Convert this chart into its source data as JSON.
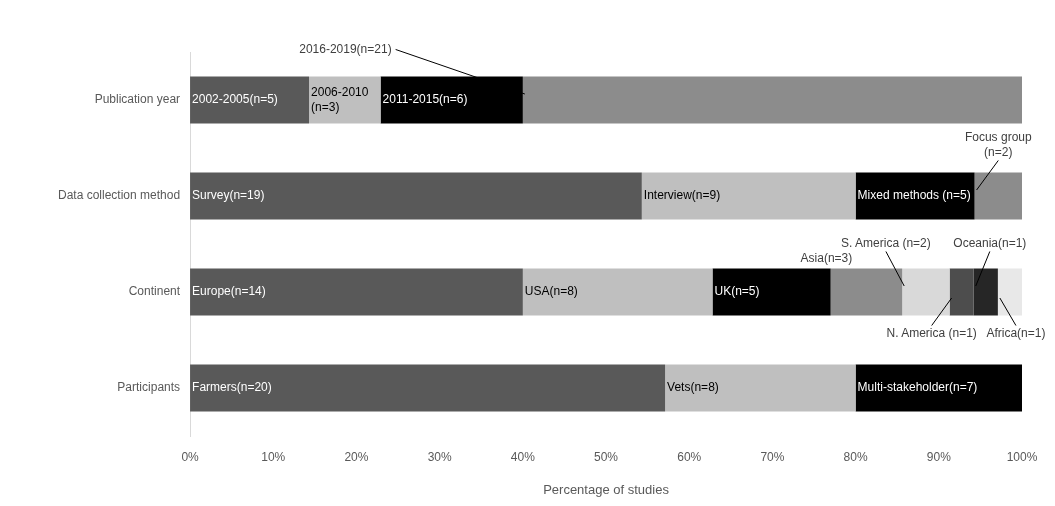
{
  "chart_data": {
    "type": "bar",
    "orientation": "horizontal",
    "stacked": true,
    "grid": false,
    "legend": false,
    "categories": [
      "Publication year",
      "Data collection method",
      "Continent",
      "Participants"
    ],
    "xlabel": "Percentage of studies",
    "xlim": [
      0,
      100
    ],
    "xticks": [
      {
        "value": 0,
        "label": "0%"
      },
      {
        "value": 10,
        "label": "10%"
      },
      {
        "value": 20,
        "label": "20%"
      },
      {
        "value": 30,
        "label": "30%"
      },
      {
        "value": 40,
        "label": "40%"
      },
      {
        "value": 50,
        "label": "50%"
      },
      {
        "value": 60,
        "label": "60%"
      },
      {
        "value": 70,
        "label": "70%"
      },
      {
        "value": 80,
        "label": "80%"
      },
      {
        "value": 90,
        "label": "90%"
      },
      {
        "value": 100,
        "label": "100%"
      }
    ],
    "series": [
      {
        "color": "#595959",
        "values": [
          14.3,
          54.3,
          40,
          57.1
        ]
      },
      {
        "color": "#bfbfbf",
        "values": [
          8.6,
          25.7,
          22.8,
          22.9
        ]
      },
      {
        "color": "#000000",
        "values": [
          17.1,
          14.3,
          14.2,
          20
        ]
      },
      {
        "color": "#8c8c8c",
        "values": [
          60,
          5.7,
          8.6,
          null
        ]
      },
      {
        "color": "#d9d9d9",
        "values": [
          null,
          null,
          5.7,
          null
        ]
      },
      {
        "color": "#4d4d4d",
        "values": [
          null,
          null,
          2.9,
          null
        ]
      },
      {
        "color": "#262626",
        "values": [
          null,
          null,
          2.9,
          null
        ]
      },
      {
        "color": "#e8e8e8",
        "values": [
          null,
          null,
          2.9,
          null
        ]
      }
    ],
    "annotations": [
      {
        "text": "2002-2005(n=5)",
        "x": 0,
        "y": "Publication year"
      },
      {
        "text": "2006-2010 (n=3)",
        "x": 14.3,
        "y": "Publication year"
      },
      {
        "text": "2011-2015(n=6)",
        "x": 22.9,
        "y": "Publication year"
      },
      {
        "text": "2016-2019(n=21)",
        "x": 40,
        "y": "Publication year"
      },
      {
        "text": "Survey(n=19)",
        "x": 0,
        "y": "Data collection method"
      },
      {
        "text": "Interview(n=9)",
        "x": 54.3,
        "y": "Data collection method"
      },
      {
        "text": "Mixed methods (n=5)",
        "x": 80,
        "y": "Data collection method"
      },
      {
        "text": "Focus group (n=2)",
        "x": 94.3,
        "y": "Data collection method"
      },
      {
        "text": "Europe(n=14)",
        "x": 0,
        "y": "Continent"
      },
      {
        "text": "USA(n=8)",
        "x": 40,
        "y": "Continent"
      },
      {
        "text": "UK(n=5)",
        "x": 62.8,
        "y": "Continent"
      },
      {
        "text": "Asia(n=3)",
        "x": 77,
        "y": "Continent"
      },
      {
        "text": "S. America (n=2)",
        "x": 85.6,
        "y": "Continent"
      },
      {
        "text": "N. America (n=1)",
        "x": 91.3,
        "y": "Continent"
      },
      {
        "text": "Oceania(n=1)",
        "x": 94.2,
        "y": "Continent"
      },
      {
        "text": "Africa(n=1)",
        "x": 97.1,
        "y": "Continent"
      },
      {
        "text": "Farmers(n=20)",
        "x": 0,
        "y": "Participants"
      },
      {
        "text": "Vets(n=8)",
        "x": 57.1,
        "y": "Participants"
      },
      {
        "text": "Multi-stakeholder(n=7)",
        "x": 80,
        "y": "Participants"
      }
    ]
  }
}
